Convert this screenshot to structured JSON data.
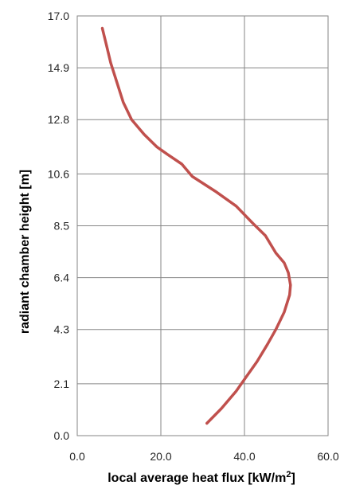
{
  "chart_data": {
    "type": "line",
    "title": "",
    "xlabel": "local average heat flux [kW/m",
    "xlabel_superscript": "2",
    "xlabel_suffix": "]",
    "ylabel": "radiant chamber height [m]",
    "xlim": [
      0,
      60
    ],
    "ylim": [
      0,
      17
    ],
    "x_ticks": [
      0,
      20,
      40,
      60
    ],
    "x_tick_labels": [
      "0.0",
      "20.0",
      "40.0",
      "60.0"
    ],
    "y_ticks": [
      0,
      2.1,
      4.3,
      6.4,
      8.5,
      10.6,
      12.8,
      14.9,
      17.0
    ],
    "y_tick_labels": [
      "0.0",
      "2.1",
      "4.3",
      "6.4",
      "8.5",
      "10.6",
      "12.8",
      "14.9",
      "17.0"
    ],
    "grid": true,
    "legend": "none",
    "series": [
      {
        "color": "#c0504d",
        "x": [
          31,
          34.5,
          38,
          40.5,
          43,
          45.5,
          47.5,
          49.5,
          50.8,
          51.0,
          50.5,
          49.5,
          47.5,
          45,
          42,
          38,
          33,
          27.5,
          25,
          21.5,
          19,
          16,
          13,
          11,
          9.5,
          8,
          7,
          6
        ],
        "y": [
          0.5,
          1.1,
          1.8,
          2.4,
          3.0,
          3.7,
          4.3,
          5.0,
          5.7,
          6.1,
          6.6,
          7.0,
          7.4,
          8.1,
          8.6,
          9.3,
          9.9,
          10.5,
          11.0,
          11.4,
          11.7,
          12.2,
          12.8,
          13.5,
          14.3,
          15.1,
          15.8,
          16.5
        ]
      }
    ]
  }
}
